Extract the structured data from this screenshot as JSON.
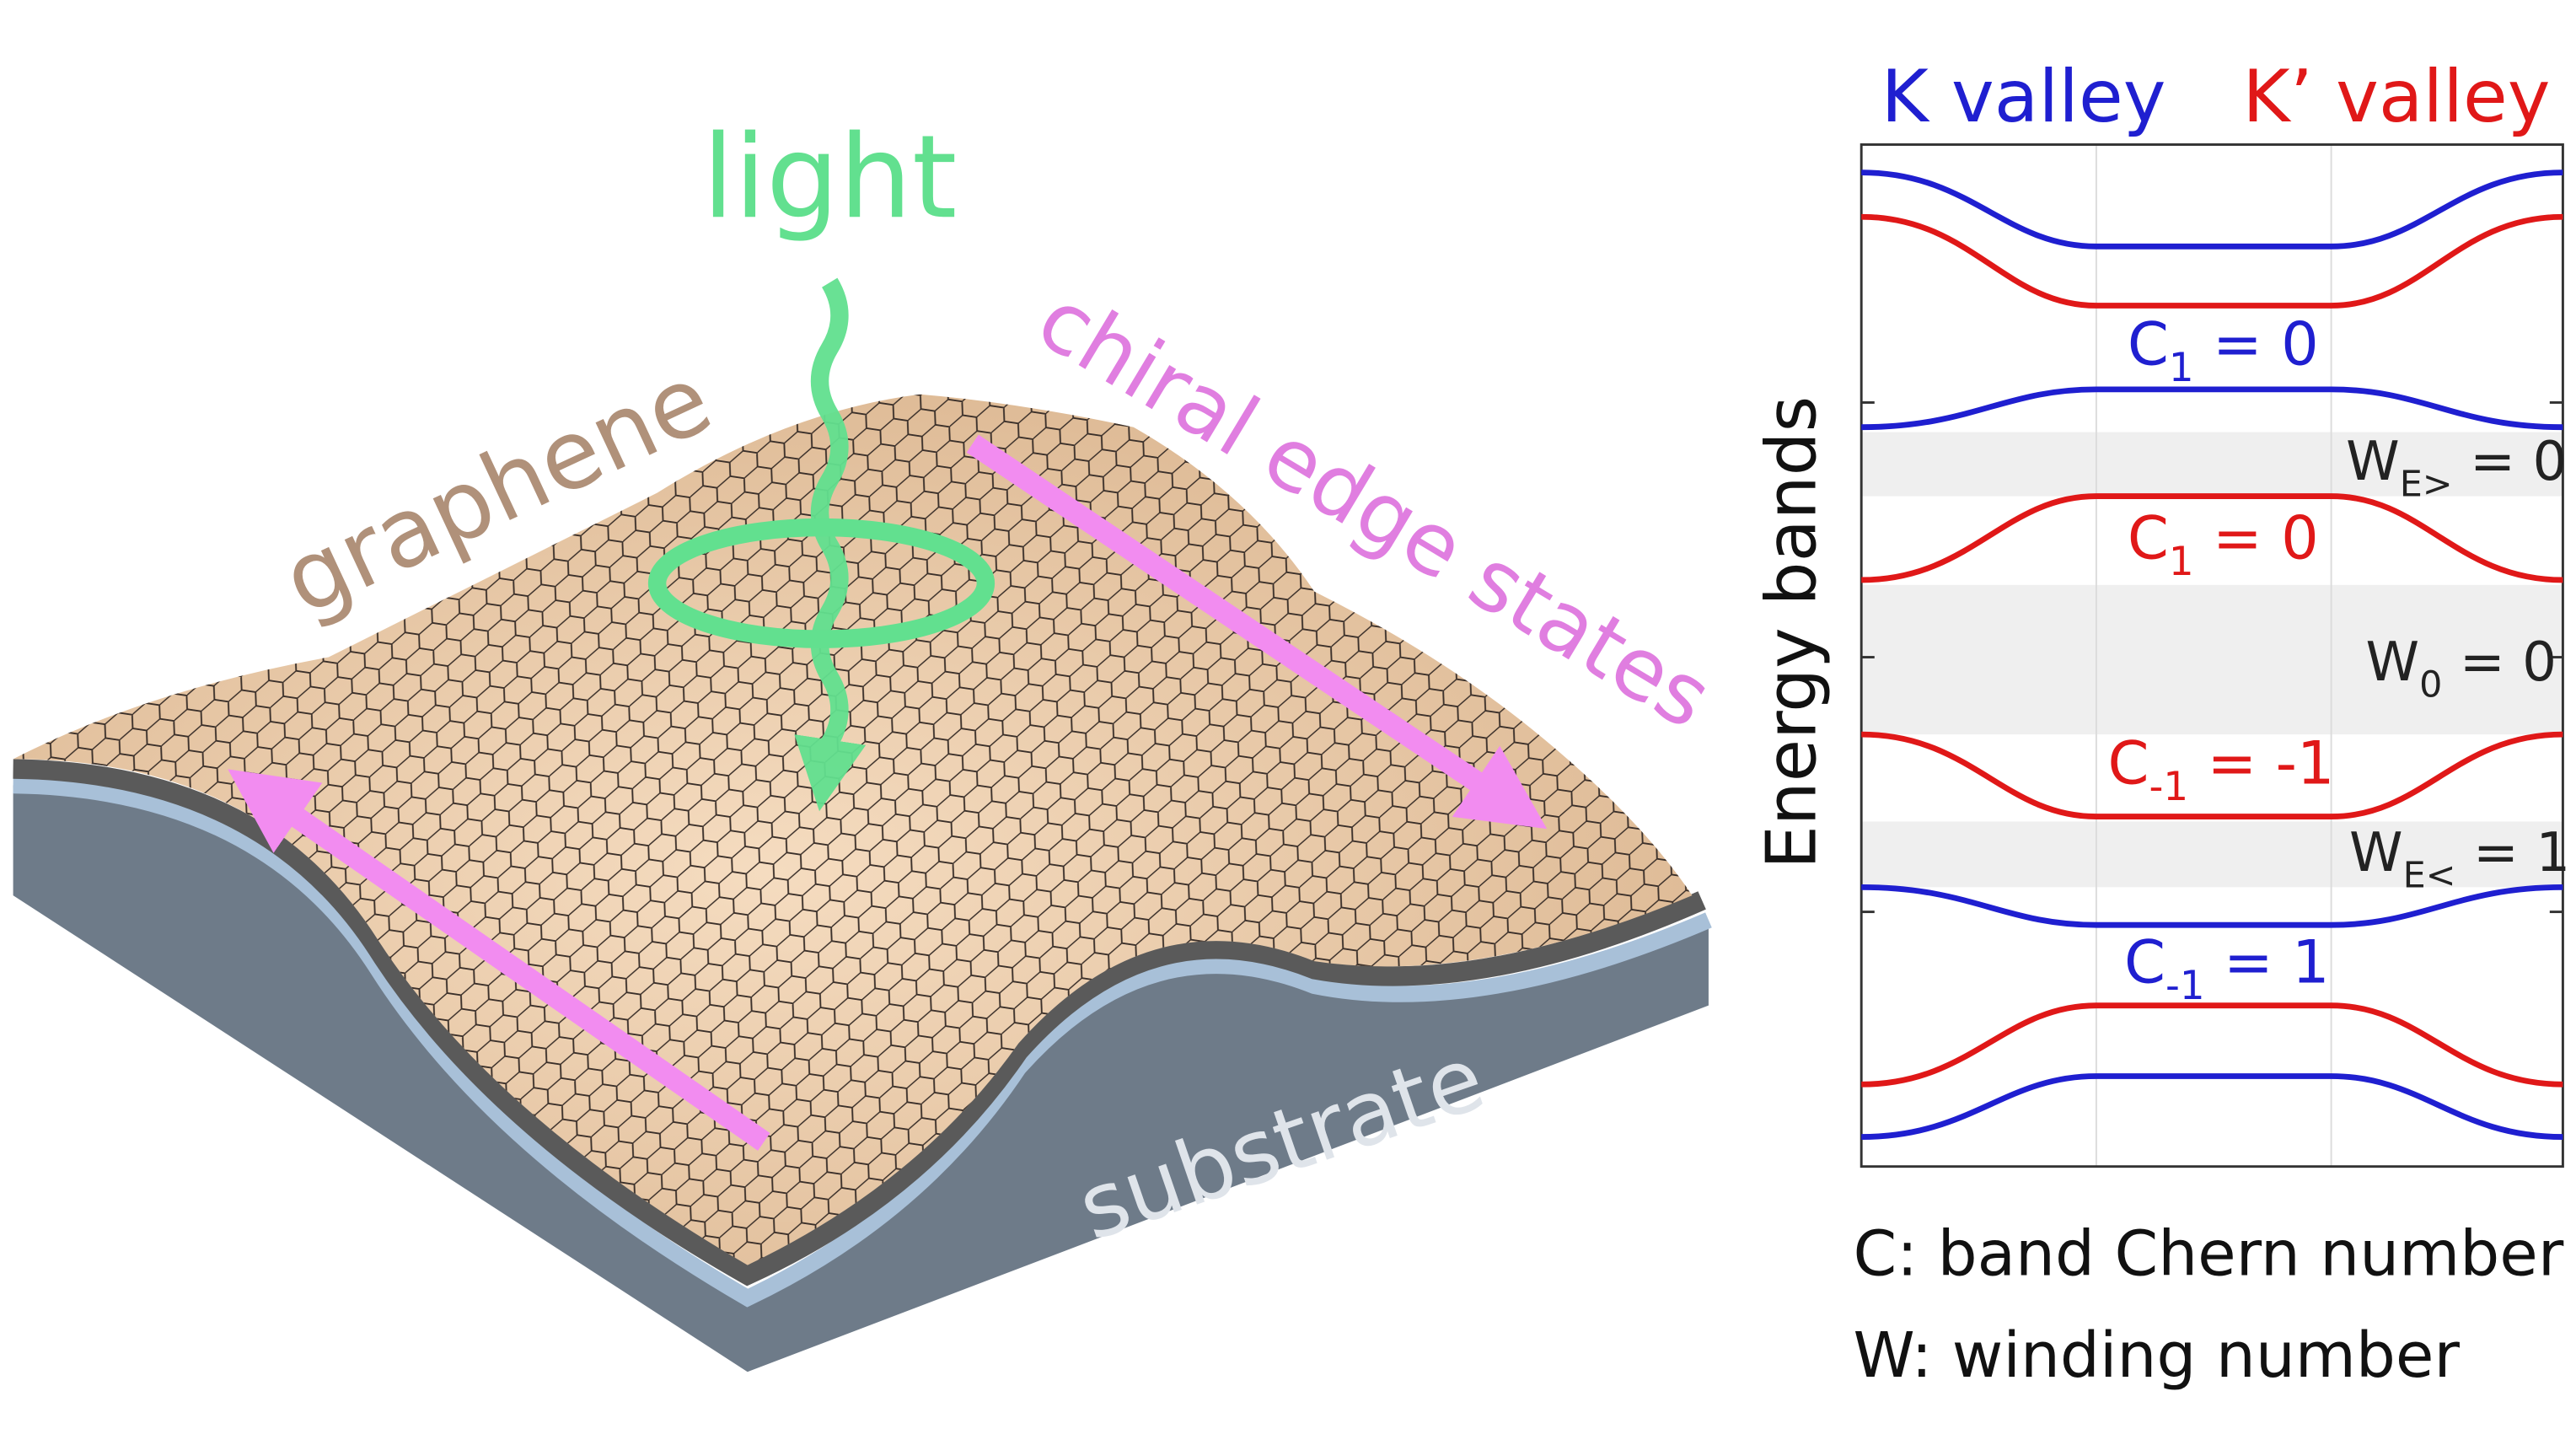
{
  "header": {
    "k_valley": "K valley",
    "k_prime_valley": "K’ valley"
  },
  "illustration": {
    "light": "light",
    "graphene": "graphene",
    "edge_states": "chiral edge states",
    "substrate": "substrate"
  },
  "plot": {
    "y_label": "Energy bands",
    "band_labels": [
      {
        "symbol": "C",
        "sub": "1",
        "rest": " = 0"
      },
      {
        "symbol": "W",
        "sub": "E>",
        "rest": " = 0"
      },
      {
        "symbol": "C",
        "sub": "1",
        "rest": " = 0"
      },
      {
        "symbol": "W",
        "sub": "0",
        "rest": " = 0"
      },
      {
        "symbol": "C",
        "sub": "-1",
        "rest": " = -1"
      },
      {
        "symbol": "W",
        "sub": "E<",
        "rest": " = 1"
      },
      {
        "symbol": "C",
        "sub": "-1",
        "rest": " = 1"
      }
    ],
    "legend": [
      "C: band Chern number",
      "W: winding number"
    ]
  }
}
